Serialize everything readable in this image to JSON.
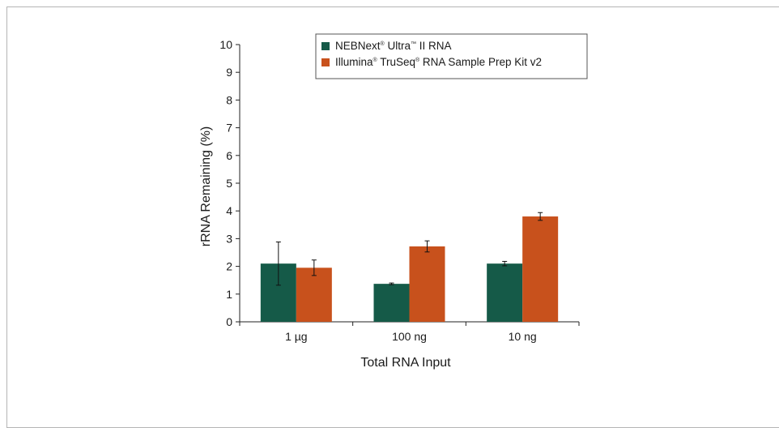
{
  "chart_data": {
    "type": "bar",
    "categories": [
      "1 µg",
      "100 ng",
      "10 ng"
    ],
    "series": [
      {
        "name": "NEBNext® Ultra™ II RNA",
        "color": "#155a48",
        "values": [
          2.1,
          1.37,
          2.1
        ],
        "errors": [
          0.78,
          0.03,
          0.08
        ]
      },
      {
        "name": "Illumina® TruSeq® RNA Sample Prep Kit v2",
        "color": "#c8511c",
        "values": [
          1.95,
          2.72,
          3.8
        ],
        "errors": [
          0.28,
          0.2,
          0.14
        ]
      }
    ],
    "title": "",
    "xlabel": "Total RNA Input",
    "ylabel": "rRNA Remaining (%)",
    "ylim": [
      0,
      10
    ],
    "yticks": [
      0,
      1,
      2,
      3,
      4,
      5,
      6,
      7,
      8,
      9,
      10
    ],
    "grid": false,
    "legend_position": "top-right"
  },
  "legend": {
    "entries": [
      {
        "label_main": "NEBNext",
        "label_sup1": "®",
        "label_mid": " Ultra",
        "label_sup2": "™",
        "label_end": " II RNA"
      },
      {
        "label_main": "Illumina",
        "label_sup1": "®",
        "label_mid": " TruSeq",
        "label_sup2": "®",
        "label_end": " RNA Sample Prep Kit v2"
      }
    ]
  }
}
